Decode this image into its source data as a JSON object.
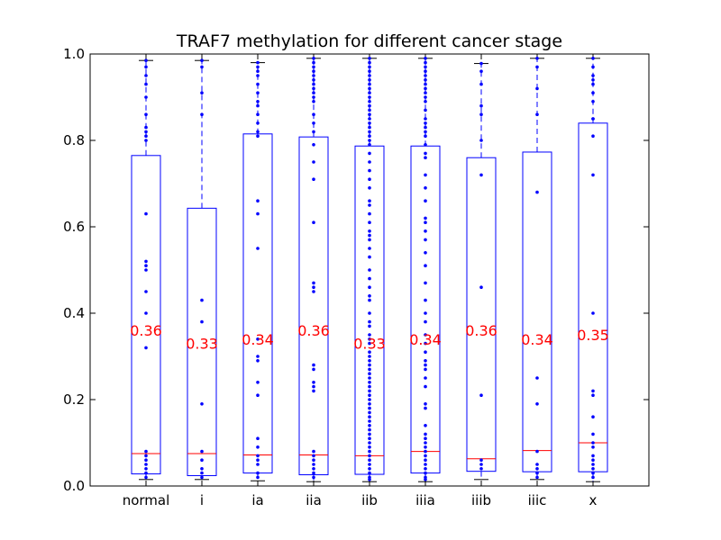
{
  "chart_data": {
    "type": "box",
    "title": "TRAF7 methylation for different cancer stage",
    "xlabel": "",
    "ylabel": "",
    "ylim": [
      0.0,
      1.0
    ],
    "yticks": [
      "0.0",
      "0.2",
      "0.4",
      "0.6",
      "0.8",
      "1.0"
    ],
    "categories": [
      "normal",
      "i",
      "ia",
      "iia",
      "iib",
      "iiia",
      "iiib",
      "iiic",
      "x"
    ],
    "annotations": [
      "0.36",
      "0.33",
      "0.34",
      "0.36",
      "0.33",
      "0.34",
      "0.36",
      "0.34",
      "0.35"
    ],
    "boxes": [
      {
        "label": "normal",
        "whisker_low": 0.015,
        "q1": 0.028,
        "median": 0.075,
        "q3": 0.765,
        "whisker_high": 0.985,
        "mean_label": "0.36",
        "points": [
          0.985,
          0.97,
          0.95,
          0.93,
          0.9,
          0.86,
          0.83,
          0.82,
          0.81,
          0.8,
          0.63,
          0.52,
          0.51,
          0.5,
          0.45,
          0.4,
          0.32,
          0.08,
          0.07,
          0.06,
          0.05,
          0.04,
          0.03,
          0.02
        ]
      },
      {
        "label": "i",
        "whisker_low": 0.015,
        "q1": 0.024,
        "median": 0.075,
        "q3": 0.643,
        "whisker_high": 0.985,
        "mean_label": "0.33",
        "points": [
          0.985,
          0.97,
          0.91,
          0.86,
          0.43,
          0.38,
          0.19,
          0.08,
          0.06,
          0.04,
          0.03,
          0.02
        ]
      },
      {
        "label": "ia",
        "whisker_low": 0.012,
        "q1": 0.03,
        "median": 0.072,
        "q3": 0.815,
        "whisker_high": 0.98,
        "mean_label": "0.34",
        "points": [
          0.98,
          0.97,
          0.96,
          0.95,
          0.93,
          0.91,
          0.89,
          0.88,
          0.86,
          0.84,
          0.82,
          0.81,
          0.66,
          0.63,
          0.55,
          0.34,
          0.3,
          0.29,
          0.24,
          0.21,
          0.11,
          0.09,
          0.07,
          0.06,
          0.05,
          0.03,
          0.02
        ]
      },
      {
        "label": "iia",
        "whisker_low": 0.01,
        "q1": 0.026,
        "median": 0.072,
        "q3": 0.808,
        "whisker_high": 0.99,
        "mean_label": "0.36",
        "points": [
          0.99,
          0.98,
          0.97,
          0.96,
          0.95,
          0.94,
          0.93,
          0.92,
          0.91,
          0.9,
          0.89,
          0.86,
          0.84,
          0.82,
          0.79,
          0.75,
          0.71,
          0.61,
          0.47,
          0.46,
          0.45,
          0.28,
          0.27,
          0.24,
          0.23,
          0.22,
          0.08,
          0.07,
          0.06,
          0.05,
          0.04,
          0.03,
          0.02
        ]
      },
      {
        "label": "iib",
        "whisker_low": 0.01,
        "q1": 0.027,
        "median": 0.07,
        "q3": 0.787,
        "whisker_high": 0.99,
        "mean_label": "0.33",
        "points": [
          0.99,
          0.98,
          0.97,
          0.96,
          0.95,
          0.94,
          0.93,
          0.92,
          0.91,
          0.9,
          0.89,
          0.88,
          0.87,
          0.86,
          0.85,
          0.84,
          0.83,
          0.82,
          0.81,
          0.8,
          0.79,
          0.77,
          0.75,
          0.73,
          0.71,
          0.69,
          0.66,
          0.65,
          0.63,
          0.61,
          0.59,
          0.58,
          0.57,
          0.55,
          0.53,
          0.5,
          0.48,
          0.46,
          0.44,
          0.43,
          0.4,
          0.38,
          0.37,
          0.35,
          0.34,
          0.33,
          0.31,
          0.3,
          0.29,
          0.28,
          0.27,
          0.26,
          0.25,
          0.24,
          0.23,
          0.22,
          0.21,
          0.2,
          0.19,
          0.18,
          0.17,
          0.16,
          0.15,
          0.14,
          0.13,
          0.12,
          0.11,
          0.1,
          0.09,
          0.08,
          0.07,
          0.06,
          0.05,
          0.04,
          0.03,
          0.02,
          0.015
        ]
      },
      {
        "label": "iiia",
        "whisker_low": 0.01,
        "q1": 0.03,
        "median": 0.08,
        "q3": 0.787,
        "whisker_high": 0.99,
        "mean_label": "0.34",
        "points": [
          0.99,
          0.98,
          0.97,
          0.96,
          0.95,
          0.94,
          0.93,
          0.92,
          0.91,
          0.9,
          0.89,
          0.87,
          0.85,
          0.84,
          0.83,
          0.82,
          0.81,
          0.79,
          0.77,
          0.76,
          0.72,
          0.69,
          0.66,
          0.62,
          0.61,
          0.59,
          0.57,
          0.54,
          0.51,
          0.47,
          0.43,
          0.4,
          0.38,
          0.35,
          0.33,
          0.31,
          0.29,
          0.28,
          0.27,
          0.25,
          0.23,
          0.19,
          0.18,
          0.14,
          0.12,
          0.11,
          0.1,
          0.09,
          0.08,
          0.07,
          0.06,
          0.05,
          0.04,
          0.03,
          0.02,
          0.015
        ]
      },
      {
        "label": "iiib",
        "whisker_low": 0.015,
        "q1": 0.034,
        "median": 0.063,
        "q3": 0.76,
        "whisker_high": 0.978,
        "mean_label": "0.36",
        "points": [
          0.978,
          0.96,
          0.93,
          0.88,
          0.86,
          0.8,
          0.72,
          0.46,
          0.21,
          0.06,
          0.05,
          0.04
        ]
      },
      {
        "label": "iiic",
        "whisker_low": 0.015,
        "q1": 0.033,
        "median": 0.082,
        "q3": 0.773,
        "whisker_high": 0.99,
        "mean_label": "0.34",
        "points": [
          0.99,
          0.97,
          0.92,
          0.86,
          0.68,
          0.25,
          0.19,
          0.08,
          0.05,
          0.04,
          0.03,
          0.02
        ]
      },
      {
        "label": "x",
        "whisker_low": 0.01,
        "q1": 0.033,
        "median": 0.1,
        "q3": 0.84,
        "whisker_high": 0.99,
        "mean_label": "0.35",
        "points": [
          0.99,
          0.97,
          0.95,
          0.94,
          0.93,
          0.91,
          0.89,
          0.85,
          0.85,
          0.81,
          0.72,
          0.4,
          0.22,
          0.21,
          0.16,
          0.12,
          0.1,
          0.09,
          0.07,
          0.06,
          0.05,
          0.04,
          0.03,
          0.02
        ]
      }
    ],
    "colors": {
      "box": "#0000ff",
      "median": "#ff0000",
      "points": "#0000ff",
      "mean_label": "#ff0000",
      "frame": "#000000"
    },
    "grid": false,
    "legend": "none"
  }
}
